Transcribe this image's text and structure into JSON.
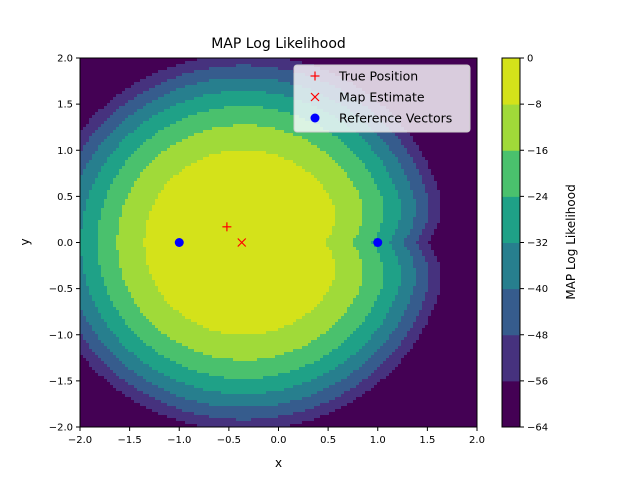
{
  "chart_data": {
    "type": "heatmap",
    "title": "MAP Log Likelihood",
    "xlabel": "x",
    "ylabel": "y",
    "xlim": [
      -2,
      2
    ],
    "ylim": [
      -2,
      2
    ],
    "x_ticks": [
      "−2.0",
      "−1.5",
      "−1.0",
      "−0.5",
      "0.0",
      "0.5",
      "1.0",
      "1.5",
      "2.0"
    ],
    "y_ticks": [
      "−2.0",
      "−1.5",
      "−1.0",
      "−0.5",
      "0.0",
      "0.5",
      "1.0",
      "1.5",
      "2.0"
    ],
    "colorbar": {
      "label": "MAP Log Likelihood",
      "levels": [
        -64,
        -56,
        -48,
        -40,
        -32,
        -24,
        -16,
        -8,
        0
      ],
      "tick_labels": [
        "−64",
        "−56",
        "−48",
        "−40",
        "−32",
        "−24",
        "−16",
        "−8",
        "0"
      ],
      "colors": [
        "#440154",
        "#46327e",
        "#365c8d",
        "#277f8e",
        "#1fa187",
        "#4ac16d",
        "#a0da39",
        "#d4e21a"
      ]
    },
    "series": [
      {
        "name": "True Position",
        "marker": "+",
        "color": "#ff0000",
        "points": [
          [
            -0.52,
            0.17
          ]
        ]
      },
      {
        "name": "Map Estimate",
        "marker": "x",
        "color": "#ff0000",
        "points": [
          [
            -0.37,
            0.0
          ]
        ]
      },
      {
        "name": "Reference Vectors",
        "marker": "o",
        "color": "#0000ff",
        "points": [
          [
            -1.0,
            0.0
          ],
          [
            1.0,
            0.0
          ]
        ]
      }
    ],
    "legend_position": "upper right"
  }
}
